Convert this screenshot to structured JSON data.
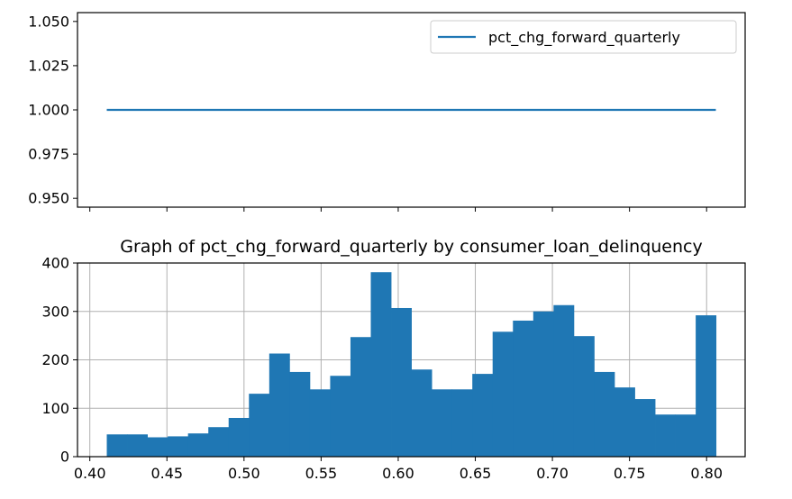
{
  "chart_data": [
    {
      "type": "line",
      "title": "",
      "xlabel": "",
      "ylabel": "",
      "series": [
        {
          "name": "pct_chg_forward_quarterly",
          "color": "#1f77b4",
          "x": [
            0.411,
            0.806
          ],
          "y": [
            1.0,
            1.0
          ]
        }
      ],
      "xlim": [
        0.392,
        0.825
      ],
      "ylim": [
        0.945,
        1.055
      ],
      "yticks": [
        "0.950",
        "0.975",
        "1.000",
        "1.025",
        "1.050"
      ],
      "ytick_values": [
        0.95,
        0.975,
        1.0,
        1.025,
        1.05
      ],
      "xtick_values": [
        0.4,
        0.45,
        0.5,
        0.55,
        0.6,
        0.65,
        0.7,
        0.75,
        0.8
      ],
      "xtick_labels_visible": false,
      "grid": false,
      "legend": "top-right"
    },
    {
      "type": "bar",
      "title": "Graph of pct_chg_forward_quarterly by consumer_loan_delinquency",
      "xlabel": "",
      "ylabel": "",
      "color": "#1f77b4",
      "bin_start": 0.411,
      "bin_width": 0.01317,
      "values": [
        46,
        46,
        40,
        42,
        48,
        61,
        80,
        130,
        213,
        175,
        139,
        167,
        247,
        381,
        307,
        180,
        139,
        139,
        171,
        258,
        281,
        300,
        313,
        249,
        175,
        143,
        119,
        87,
        87,
        292
      ],
      "xlim": [
        0.392,
        0.825
      ],
      "ylim": [
        0,
        400
      ],
      "xticks": [
        "0.40",
        "0.45",
        "0.50",
        "0.55",
        "0.60",
        "0.65",
        "0.70",
        "0.75",
        "0.80"
      ],
      "xtick_values": [
        0.4,
        0.45,
        0.5,
        0.55,
        0.6,
        0.65,
        0.7,
        0.75,
        0.8
      ],
      "yticks": [
        "0",
        "100",
        "200",
        "300",
        "400"
      ],
      "ytick_values": [
        0,
        100,
        200,
        300,
        400
      ],
      "grid": true
    }
  ]
}
